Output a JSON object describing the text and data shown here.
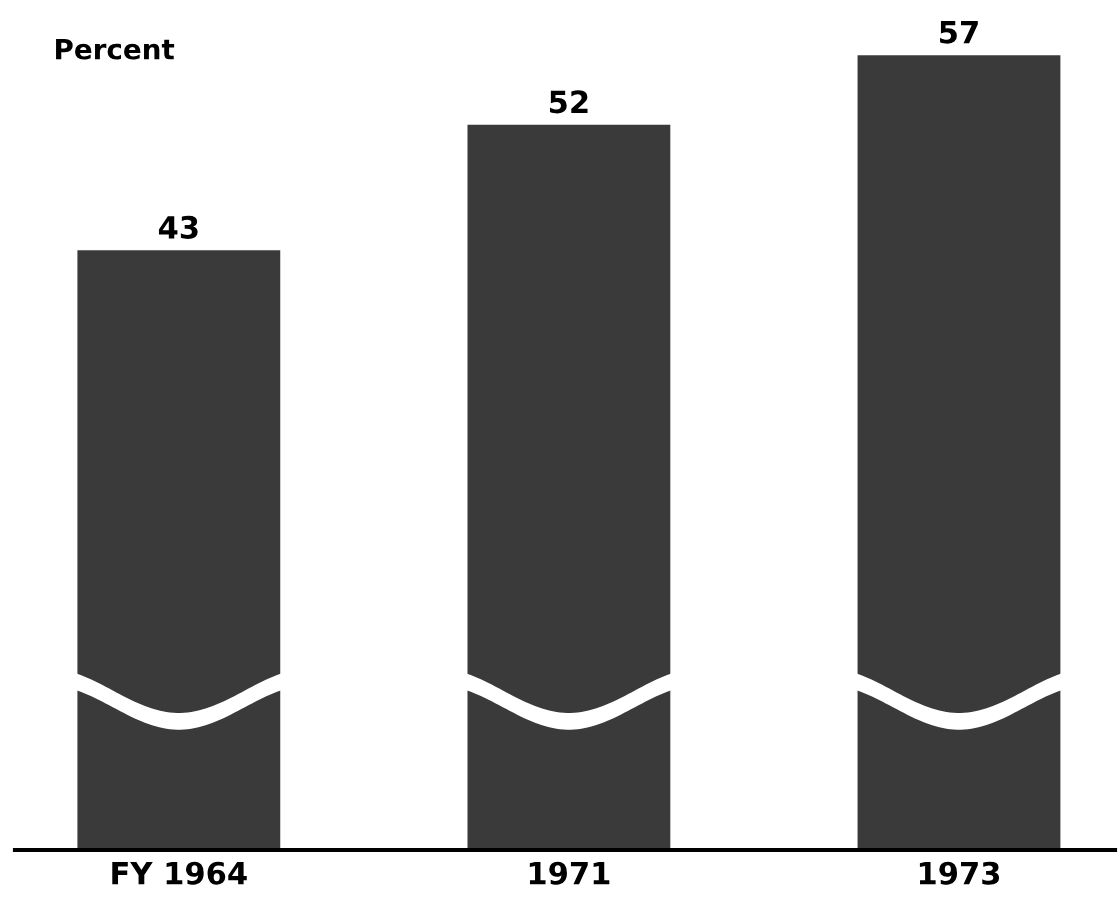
{
  "chart_data": {
    "type": "bar",
    "ylabel": "Percent",
    "categories": [
      "FY 1964",
      "1971",
      "1973"
    ],
    "values": [
      43,
      52,
      57
    ],
    "color": "#3a3a3a",
    "data_labels": true,
    "grid": false,
    "legend": false,
    "tick_labels": "x"
  }
}
